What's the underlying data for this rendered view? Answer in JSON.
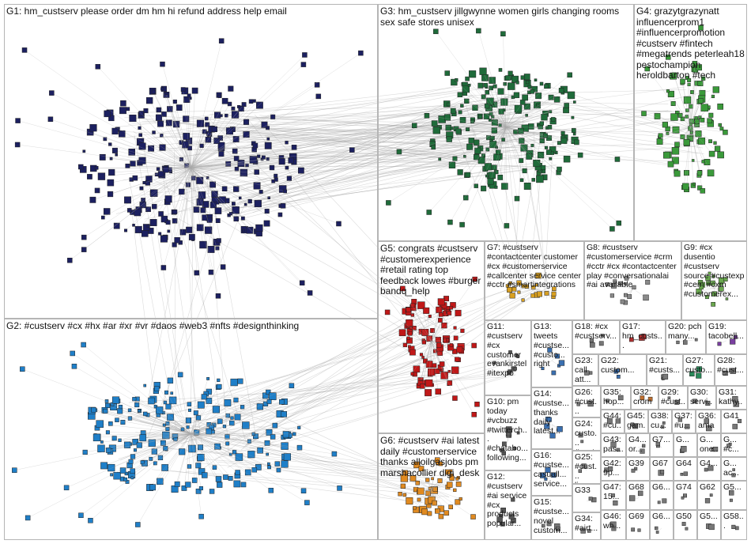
{
  "group_labels": [
    "G1: hm_custserv please order dm hm hi refund address help email",
    "G3: hm_custserv jillgwynne women girls changing rooms sex safe stores unisex",
    "G4: grazytgrazynatt influencerprom1 #influencerpromotion #custserv #fintech #megatrends peterleah18 pestochampion heroldbarton #tech",
    "G2: #custserv #cx #hx #ar #xr #vr #daos #web3 #nfts #designthinking",
    "G5: congrats #custserv #customerexperience #retail rating top feedback lowes #burger bandq_help",
    "G6: #custserv #ai latest daily #customerservice thanks alloilgasjobs pm marshacollier digi_desk",
    "G7: #custserv #contactcenter customer #cx #customerservice #callcenter service center #cctr #smartintegrations",
    "G8: #custserv #customerservice #crm #cctr #cx #contactcenter play #conversationalai #ai available",
    "G9: #cx dusentio #custserv source #custexp #cem #cxm #customerex...",
    "G11: #custserv #cx customer evankirstel #itexpo",
    "G13: tweets #custse... #custo... right",
    "G18: #cx #custserv...",
    "G17: hm_custs...",
    "G20: pch many...",
    "G19: tacobell...",
    "G23: call att...",
    "G22: custom...",
    "G21: #custs...",
    "G27: custo...",
    "G28: #cust...",
    "G10: pm today #vcbuzz #twitterch... #chatabo... following...",
    "G14: #custse... thanks daily latest...",
    "G26: #cust...",
    "G35: hop...",
    "G32: croma",
    "G29: #cust...",
    "G30: servi...",
    "G31: kathy...",
    "G24: custo... #cust...",
    "G44: #cu...",
    "G45: gam...",
    "G38: cu...",
    "G37: #u...",
    "G36: ama",
    "G41",
    "G16: #custse... casuall... service...",
    "G12: #custserv #ai service #cx products popular...",
    "G15: #custse... novel custom...",
    "G25: #cust... livec...",
    "G33",
    "G34: #airt...",
    "G43: pas...",
    "G4... or...",
    "G7...",
    "G...",
    "G... one...",
    "G... #c...",
    "G42: 9p...",
    "G39",
    "G67",
    "G64",
    "G4...",
    "G... ac...",
    "G47: 15...",
    "G68",
    "G6...",
    "G74",
    "G62",
    "G5...",
    "G46: wh...",
    "G69",
    "G6...",
    "G50",
    "G5...",
    "G58..."
  ]
}
